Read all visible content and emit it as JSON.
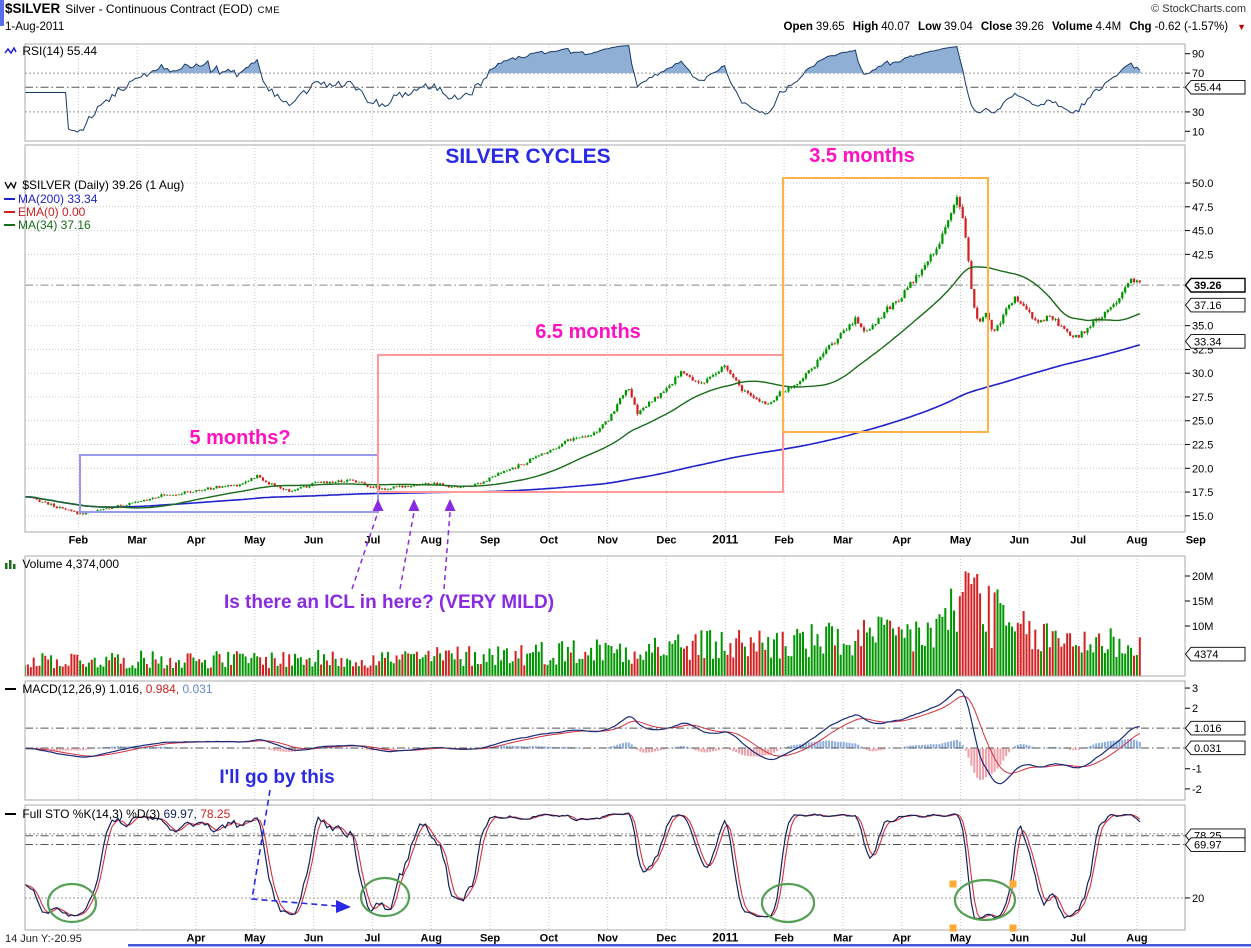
{
  "header": {
    "symbol": "$SILVER",
    "title": "Silver - Continuous Contract (EOD)",
    "exchange": "CME",
    "copyright": "© StockCharts.com",
    "date": "1-Aug-2011",
    "fields": [
      {
        "label": "Open",
        "value": "39.65"
      },
      {
        "label": "High",
        "value": "40.07"
      },
      {
        "label": "Low",
        "value": "39.04"
      },
      {
        "label": "Close",
        "value": "39.26"
      },
      {
        "label": "Volume",
        "value": "4.4M"
      },
      {
        "label": "Chg",
        "value": "-0.62 (-1.57%)"
      }
    ],
    "chg_icon": "▼"
  },
  "legends": {
    "rsi": "RSI(14) 55.44",
    "price_main": "$SILVER (Daily) 39.26 (1 Aug)",
    "ma200": "MA(200) 33.34",
    "ema": "EMA(0) 0.00",
    "ma34": "MA(34) 37.16",
    "volume": "Volume 4,374,000",
    "macd_name": "MACD(12,26,9)",
    "macd_values": [
      "1.016,",
      "0.984,",
      "0.031"
    ],
    "sto_name": "Full STO %K(14,3) %D(3)",
    "sto_values": [
      "69.97,",
      "78.25"
    ]
  },
  "annotations": {
    "silver_cycles": "SILVER CYCLES",
    "m35": "3.5 months",
    "m65": "6.5 months",
    "m5": "5 months?",
    "icl": "Is there an ICL in here? (VERY MILD)",
    "go_by": "I'll go by this"
  },
  "footer_note": "14 Jun Y:-20.95",
  "axes": {
    "months": [
      [
        "Feb",
        0.046
      ],
      [
        "Mar",
        0.0967
      ],
      [
        "Apr",
        0.1474
      ],
      [
        "May",
        0.1981
      ],
      [
        "Jun",
        0.2488
      ],
      [
        "Jul",
        0.2995
      ],
      [
        "Aug",
        0.3502
      ],
      [
        "Sep",
        0.4009
      ],
      [
        "Oct",
        0.4516
      ],
      [
        "Nov",
        0.5023
      ],
      [
        "Dec",
        0.553
      ],
      [
        "2011",
        0.6037
      ],
      [
        "Feb",
        0.6544
      ],
      [
        "Mar",
        0.7051
      ],
      [
        "Apr",
        0.7558
      ],
      [
        "May",
        0.8065
      ],
      [
        "Jun",
        0.8572
      ],
      [
        "Jul",
        0.9079
      ],
      [
        "Aug",
        0.9586
      ],
      [
        "Sep",
        1.0093
      ]
    ],
    "rsi_labels": [
      [
        90,
        "90"
      ],
      [
        70,
        "70"
      ],
      [
        30,
        "30"
      ],
      [
        10,
        "10"
      ]
    ],
    "rsi_boxed": [
      [
        55.44,
        "55.44"
      ]
    ],
    "price_labels": [
      [
        50,
        "50.0"
      ],
      [
        47.5,
        "47.5"
      ],
      [
        45,
        "45.0"
      ],
      [
        42.5,
        "42.5"
      ],
      [
        35,
        "35.0"
      ],
      [
        32.5,
        "32.5"
      ],
      [
        30,
        "30.0"
      ],
      [
        27.5,
        "27.5"
      ],
      [
        25,
        "25.0"
      ],
      [
        22.5,
        "22.5"
      ],
      [
        20,
        "20.0"
      ],
      [
        17.5,
        "17.5"
      ],
      [
        15,
        "15.0"
      ]
    ],
    "price_boxed": [
      [
        39.26,
        "39.26",
        true
      ],
      [
        37.16,
        "37.16",
        false
      ],
      [
        33.34,
        "33.34",
        false
      ]
    ],
    "vol_labels": [
      [
        20,
        "20M"
      ],
      [
        15,
        "15M"
      ],
      [
        10,
        "10M"
      ]
    ],
    "vol_boxed": [
      [
        4.374,
        "4374"
      ]
    ],
    "macd_labels": [
      [
        3,
        "3"
      ],
      [
        2,
        "2"
      ],
      [
        -1,
        "-1"
      ],
      [
        -2,
        "-2"
      ]
    ],
    "macd_boxed": [
      [
        1.016,
        "1.016"
      ],
      [
        0.031,
        "0.031"
      ]
    ],
    "sto_labels": [
      [
        20,
        "20"
      ]
    ],
    "sto_boxed": [
      [
        78.25,
        "78.25"
      ],
      [
        69.97,
        "69.97"
      ]
    ]
  },
  "colors": {
    "up": "#009600",
    "down": "#D42020",
    "ma200": "#2222CC",
    "ma34": "#1A6B1A",
    "ema": "#CC2222",
    "rsi_line": "#1A3A6B",
    "rsi_fill": "#8FAFD4",
    "macd_line": "#1A2A7A",
    "macd_signal": "#D43040",
    "hist_pos": "#8FAEDC",
    "hist_neg": "#F0A0A8",
    "sto_k": "#14225A",
    "sto_d": "#D43040",
    "grid": "#C8C8C8",
    "annotation_magenta": "#FF10C0",
    "annotation_blue": "#2A2AE6",
    "annotation_purple": "#8A2BE2",
    "box_blue": "#9999EE",
    "box_red": "#FF9999",
    "box_orange": "#FFB347",
    "circle_green": "#55A055",
    "square_orange": "#FFAA33"
  },
  "chart_data": [
    {
      "type": "line",
      "panel": "rsi",
      "name": "RSI(14)",
      "last": 55.44,
      "range": [
        0,
        100
      ],
      "overbought": 70,
      "oversold": 30
    },
    {
      "type": "candlestick",
      "panel": "price",
      "name": "$SILVER daily close (USD)",
      "last": 39.26,
      "ylim": [
        13.3,
        54.0
      ],
      "overlays": [
        {
          "name": "MA(200)",
          "last": 33.34
        },
        {
          "name": "EMA(0)",
          "last": 0.0
        },
        {
          "name": "MA(34)",
          "last": 37.16
        }
      ],
      "close_anchors": [
        [
          0.0,
          17.0
        ],
        [
          0.015,
          16.5
        ],
        [
          0.03,
          15.8
        ],
        [
          0.048,
          15.2
        ],
        [
          0.065,
          15.6
        ],
        [
          0.08,
          16.0
        ],
        [
          0.096,
          16.4
        ],
        [
          0.115,
          17.1
        ],
        [
          0.13,
          17.3
        ],
        [
          0.147,
          17.6
        ],
        [
          0.165,
          18.0
        ],
        [
          0.185,
          18.3
        ],
        [
          0.2,
          19.2
        ],
        [
          0.212,
          18.3
        ],
        [
          0.228,
          17.6
        ],
        [
          0.24,
          18.0
        ],
        [
          0.252,
          18.5
        ],
        [
          0.268,
          18.6
        ],
        [
          0.282,
          18.8
        ],
        [
          0.295,
          18.2
        ],
        [
          0.31,
          17.8
        ],
        [
          0.325,
          18.1
        ],
        [
          0.34,
          18.3
        ],
        [
          0.352,
          18.4
        ],
        [
          0.368,
          18.0
        ],
        [
          0.382,
          18.1
        ],
        [
          0.395,
          18.6
        ],
        [
          0.405,
          19.2
        ],
        [
          0.418,
          19.9
        ],
        [
          0.432,
          20.6
        ],
        [
          0.445,
          21.5
        ],
        [
          0.455,
          22.0
        ],
        [
          0.468,
          23.0
        ],
        [
          0.48,
          23.3
        ],
        [
          0.492,
          23.8
        ],
        [
          0.502,
          24.9
        ],
        [
          0.512,
          27.0
        ],
        [
          0.519,
          28.6
        ],
        [
          0.528,
          25.8
        ],
        [
          0.538,
          26.8
        ],
        [
          0.548,
          27.8
        ],
        [
          0.556,
          28.6
        ],
        [
          0.565,
          30.2
        ],
        [
          0.575,
          29.3
        ],
        [
          0.585,
          29.0
        ],
        [
          0.595,
          29.8
        ],
        [
          0.603,
          30.8
        ],
        [
          0.612,
          29.2
        ],
        [
          0.622,
          27.8
        ],
        [
          0.632,
          27.1
        ],
        [
          0.641,
          26.8
        ],
        [
          0.652,
          28.0
        ],
        [
          0.663,
          28.6
        ],
        [
          0.672,
          29.8
        ],
        [
          0.682,
          31.0
        ],
        [
          0.692,
          32.6
        ],
        [
          0.7,
          33.6
        ],
        [
          0.708,
          34.6
        ],
        [
          0.716,
          35.8
        ],
        [
          0.724,
          34.3
        ],
        [
          0.732,
          35.2
        ],
        [
          0.742,
          36.6
        ],
        [
          0.752,
          37.6
        ],
        [
          0.76,
          38.8
        ],
        [
          0.77,
          40.3
        ],
        [
          0.779,
          41.8
        ],
        [
          0.787,
          43.5
        ],
        [
          0.794,
          45.5
        ],
        [
          0.8,
          47.3
        ],
        [
          0.804,
          48.5
        ],
        [
          0.808,
          47.0
        ],
        [
          0.812,
          42.8
        ],
        [
          0.817,
          38.0
        ],
        [
          0.822,
          34.8
        ],
        [
          0.828,
          36.6
        ],
        [
          0.834,
          34.2
        ],
        [
          0.84,
          35.1
        ],
        [
          0.847,
          36.8
        ],
        [
          0.853,
          38.0
        ],
        [
          0.86,
          37.0
        ],
        [
          0.868,
          36.0
        ],
        [
          0.876,
          35.3
        ],
        [
          0.884,
          36.2
        ],
        [
          0.891,
          35.0
        ],
        [
          0.898,
          34.2
        ],
        [
          0.905,
          33.7
        ],
        [
          0.912,
          34.3
        ],
        [
          0.92,
          35.2
        ],
        [
          0.928,
          35.9
        ],
        [
          0.936,
          36.8
        ],
        [
          0.944,
          38.2
        ],
        [
          0.95,
          39.5
        ],
        [
          0.955,
          40.0
        ],
        [
          0.961,
          39.26
        ]
      ]
    },
    {
      "type": "bar",
      "panel": "volume",
      "name": "Volume (millions of shares)",
      "last": 4.374,
      "ylim": [
        0,
        24
      ],
      "profile_anchors": [
        [
          0.0,
          3.2
        ],
        [
          0.3,
          3.4
        ],
        [
          0.4,
          4.2
        ],
        [
          0.5,
          5.2
        ],
        [
          0.6,
          6.2
        ],
        [
          0.7,
          7.0
        ],
        [
          0.78,
          8.5
        ],
        [
          0.795,
          11.0
        ],
        [
          0.81,
          16.0
        ],
        [
          0.818,
          19.0
        ],
        [
          0.83,
          13.0
        ],
        [
          0.85,
          9.0
        ],
        [
          0.88,
          7.5
        ],
        [
          0.92,
          7.0
        ],
        [
          0.961,
          6.2
        ]
      ]
    },
    {
      "type": "line",
      "panel": "macd",
      "name": "MACD(12,26,9)",
      "macd": 1.016,
      "signal": 0.984,
      "hist": 0.031,
      "ylim": [
        -2.55,
        3.35
      ]
    },
    {
      "type": "line",
      "panel": "sto",
      "name": "Full STO %K(14,3) %D(3)",
      "k": 69.97,
      "d": 78.25,
      "ylim": [
        -10,
        107
      ],
      "bands": [
        80,
        20
      ]
    }
  ]
}
